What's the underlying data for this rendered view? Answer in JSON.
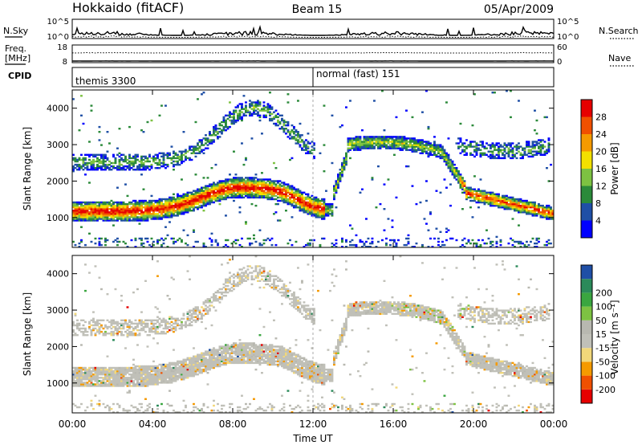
{
  "header": {
    "station": "Hokkaido (fitACF)",
    "beam": "Beam 15",
    "date": "05/Apr/2009"
  },
  "strip": {
    "nsky_label": "N.Sky",
    "nsearch_label": "N.Search",
    "nsky_ticks": [
      "10^5",
      "10^0"
    ],
    "nsearch_ticks": [
      "10^5",
      "10^0"
    ],
    "freq_label_1": "Freq.",
    "freq_label_2": "[MHz]",
    "freq_ticks": [
      "18",
      "8"
    ],
    "nave_label": "Nave",
    "nave_ticks": [
      "60",
      "0"
    ],
    "cpid_label": "CPID",
    "cpid_segments": [
      {
        "label": "themis 3300",
        "start_hour": 0,
        "end_hour": 12
      },
      {
        "label": "normal (fast) 151",
        "start_hour": 12,
        "end_hour": 24
      }
    ]
  },
  "colors": {
    "power": [
      "#0000ff",
      "#1f4fa6",
      "#2b8a3a",
      "#7dc242",
      "#f2e000",
      "#f59a00",
      "#f05000",
      "#e60000"
    ],
    "velocity": [
      "#e60000",
      "#f05000",
      "#f59a00",
      "#f2d87a",
      "#c0c0b8",
      "#b8b8b0",
      "#7dc242",
      "#3aa640",
      "#2b8a5a",
      "#1f4fa6"
    ]
  },
  "chart_data": [
    {
      "type": "heatmap",
      "name": "power",
      "ylabel": "Slant Range [km]",
      "xlim_hours": [
        0,
        24
      ],
      "ylim_km": [
        180,
        4500
      ],
      "yticks": [
        "1000",
        "2000",
        "3000",
        "4000"
      ],
      "colorbar_label": "Power [dB]",
      "colorbar_ticks": [
        "4",
        "8",
        "12",
        "16",
        "20",
        "24",
        "28"
      ]
    },
    {
      "type": "heatmap",
      "name": "velocity",
      "ylabel": "Slant Range [km]",
      "xlabel": "Time UT",
      "xlim_hours": [
        0,
        24
      ],
      "ylim_km": [
        180,
        4500
      ],
      "xticks": [
        "00:00",
        "04:00",
        "08:00",
        "12:00",
        "16:00",
        "20:00",
        "00:00"
      ],
      "yticks": [
        "1000",
        "2000",
        "3000",
        "4000"
      ],
      "colorbar_label": "Velocity [m s⁻¹]",
      "colorbar_ticks": [
        "200",
        "100",
        "50",
        "15",
        "-15",
        "-50",
        "-100",
        "-200"
      ]
    }
  ]
}
